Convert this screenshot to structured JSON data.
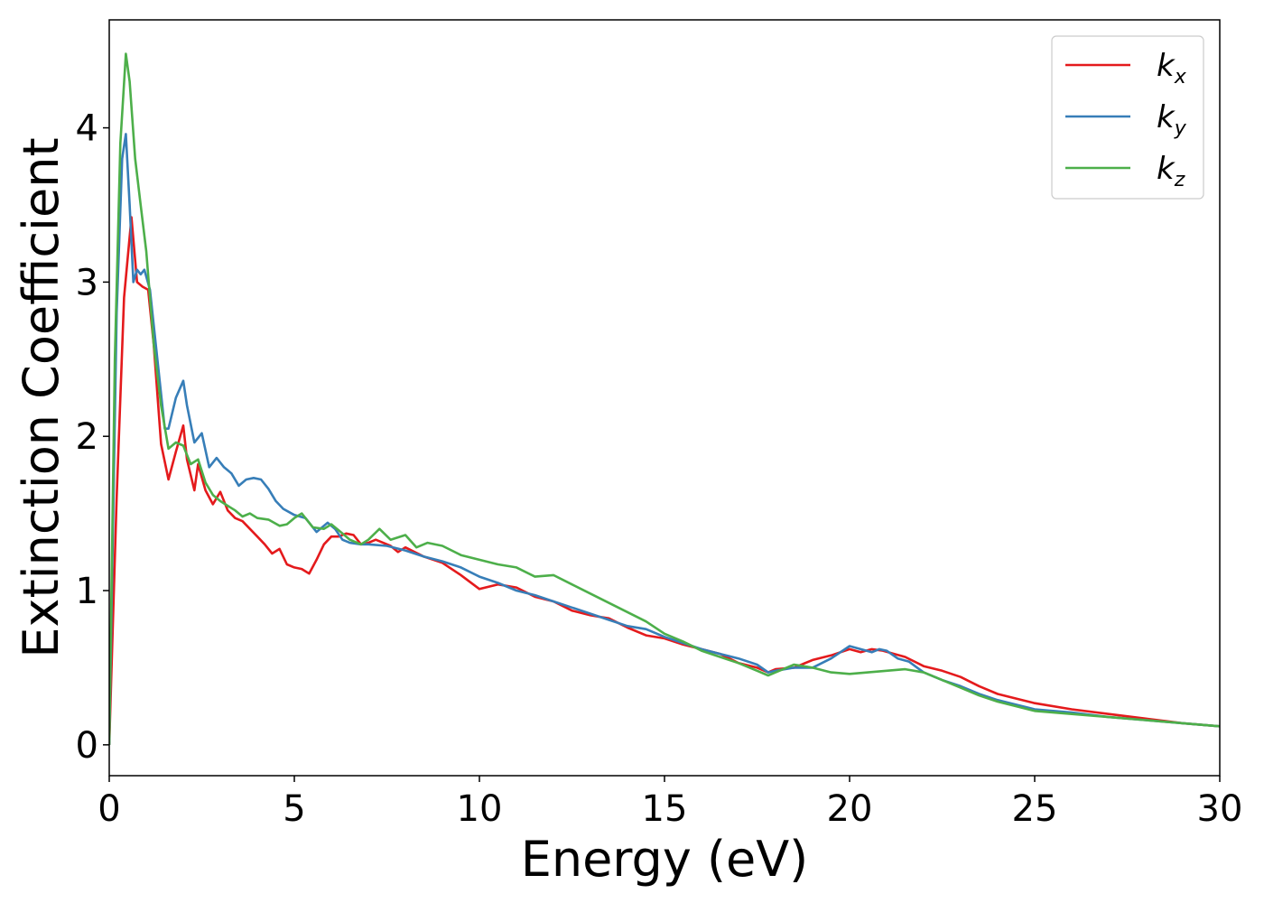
{
  "chart_data": {
    "type": "line",
    "title": "",
    "xlabel": "Energy (eV)",
    "ylabel": "Extinction Coefficient",
    "xlim": [
      0,
      30
    ],
    "ylim": [
      -0.2,
      4.7
    ],
    "xticks": [
      0,
      5,
      10,
      15,
      20,
      25,
      30
    ],
    "xtick_labels": [
      "0",
      "5",
      "10",
      "15",
      "20",
      "25",
      "30"
    ],
    "yticks": [
      0,
      1,
      2,
      3,
      4
    ],
    "ytick_labels": [
      "0",
      "1",
      "2",
      "3",
      "4"
    ],
    "grid": false,
    "legend_position": "top-right",
    "series": [
      {
        "name": "k_x",
        "legend_base": "k",
        "legend_sub": "x",
        "color": "#e41a1c",
        "x": [
          0,
          0.2,
          0.4,
          0.6,
          0.75,
          0.9,
          1.05,
          1.2,
          1.4,
          1.6,
          1.8,
          2.0,
          2.1,
          2.3,
          2.4,
          2.6,
          2.8,
          3.0,
          3.2,
          3.4,
          3.6,
          3.8,
          4.0,
          4.2,
          4.4,
          4.6,
          4.8,
          5.0,
          5.2,
          5.4,
          5.6,
          5.8,
          6.0,
          6.2,
          6.4,
          6.6,
          6.8,
          7.0,
          7.2,
          7.4,
          7.6,
          7.8,
          8.0,
          8.5,
          9.0,
          9.5,
          10.0,
          10.5,
          11.0,
          11.5,
          12.0,
          12.5,
          13.0,
          13.5,
          14.0,
          14.5,
          15.0,
          15.5,
          16.0,
          16.5,
          17.0,
          17.5,
          17.8,
          18.0,
          18.5,
          19.0,
          19.5,
          20.0,
          20.3,
          20.6,
          20.9,
          21.2,
          21.5,
          22.0,
          22.5,
          23.0,
          23.5,
          24.0,
          24.5,
          25.0,
          26.0,
          27.0,
          28.0,
          29.0,
          30.0
        ],
        "y": [
          0,
          1.6,
          2.9,
          3.42,
          3.0,
          2.97,
          2.95,
          2.6,
          1.95,
          1.72,
          1.9,
          2.07,
          1.85,
          1.65,
          1.82,
          1.65,
          1.56,
          1.64,
          1.52,
          1.47,
          1.45,
          1.4,
          1.35,
          1.3,
          1.24,
          1.27,
          1.17,
          1.15,
          1.14,
          1.11,
          1.2,
          1.3,
          1.35,
          1.35,
          1.37,
          1.36,
          1.3,
          1.31,
          1.33,
          1.31,
          1.29,
          1.25,
          1.28,
          1.22,
          1.18,
          1.1,
          1.01,
          1.04,
          1.02,
          0.96,
          0.93,
          0.87,
          0.84,
          0.82,
          0.76,
          0.71,
          0.69,
          0.65,
          0.62,
          0.59,
          0.53,
          0.5,
          0.47,
          0.49,
          0.5,
          0.55,
          0.58,
          0.62,
          0.6,
          0.62,
          0.61,
          0.59,
          0.57,
          0.51,
          0.48,
          0.44,
          0.38,
          0.33,
          0.3,
          0.27,
          0.23,
          0.2,
          0.17,
          0.14,
          0.12
        ]
      },
      {
        "name": "k_y",
        "legend_base": "k",
        "legend_sub": "y",
        "color": "#377eb8",
        "x": [
          0,
          0.2,
          0.35,
          0.45,
          0.55,
          0.65,
          0.75,
          0.85,
          0.95,
          1.1,
          1.3,
          1.5,
          1.6,
          1.8,
          2.0,
          2.1,
          2.3,
          2.5,
          2.7,
          2.9,
          3.1,
          3.3,
          3.5,
          3.7,
          3.9,
          4.1,
          4.3,
          4.5,
          4.7,
          5.0,
          5.3,
          5.6,
          5.9,
          6.1,
          6.3,
          6.5,
          6.8,
          7.0,
          7.5,
          8.0,
          8.5,
          9.0,
          9.5,
          10.0,
          10.5,
          11.0,
          11.5,
          12.0,
          12.5,
          13.0,
          13.5,
          14.0,
          14.5,
          15.0,
          15.5,
          16.0,
          16.5,
          17.0,
          17.5,
          17.8,
          18.0,
          18.5,
          19.0,
          19.5,
          20.0,
          20.3,
          20.6,
          20.8,
          21.0,
          21.3,
          21.6,
          22.0,
          22.5,
          23.0,
          23.5,
          24.0,
          24.5,
          25.0,
          26.0,
          27.0,
          28.0,
          29.0,
          30.0
        ],
        "y": [
          0,
          2.8,
          3.8,
          3.96,
          3.5,
          3.0,
          3.08,
          3.05,
          3.08,
          2.95,
          2.5,
          2.05,
          2.05,
          2.25,
          2.36,
          2.2,
          1.96,
          2.02,
          1.8,
          1.86,
          1.8,
          1.76,
          1.68,
          1.72,
          1.73,
          1.72,
          1.66,
          1.58,
          1.53,
          1.49,
          1.47,
          1.38,
          1.44,
          1.4,
          1.33,
          1.31,
          1.3,
          1.3,
          1.29,
          1.26,
          1.22,
          1.19,
          1.15,
          1.09,
          1.05,
          1.0,
          0.97,
          0.93,
          0.89,
          0.85,
          0.81,
          0.77,
          0.75,
          0.7,
          0.66,
          0.62,
          0.59,
          0.56,
          0.52,
          0.47,
          0.48,
          0.5,
          0.5,
          0.56,
          0.64,
          0.62,
          0.6,
          0.62,
          0.61,
          0.56,
          0.54,
          0.47,
          0.42,
          0.38,
          0.33,
          0.29,
          0.26,
          0.23,
          0.21,
          0.18,
          0.16,
          0.14,
          0.12
        ]
      },
      {
        "name": "k_z",
        "legend_base": "k",
        "legend_sub": "z",
        "color": "#4daf4a",
        "x": [
          0,
          0.15,
          0.3,
          0.45,
          0.55,
          0.7,
          0.85,
          1.0,
          1.2,
          1.4,
          1.6,
          1.8,
          2.0,
          2.2,
          2.4,
          2.6,
          2.8,
          3.0,
          3.2,
          3.4,
          3.6,
          3.8,
          4.0,
          4.3,
          4.6,
          4.8,
          5.0,
          5.2,
          5.5,
          5.8,
          6.0,
          6.3,
          6.5,
          6.8,
          7.0,
          7.3,
          7.6,
          8.0,
          8.3,
          8.6,
          9.0,
          9.5,
          10.0,
          10.5,
          11.0,
          11.5,
          12.0,
          12.5,
          13.0,
          13.5,
          14.0,
          14.5,
          15.0,
          15.5,
          16.0,
          16.5,
          17.0,
          17.5,
          17.8,
          18.0,
          18.5,
          19.0,
          19.5,
          20.0,
          20.5,
          21.0,
          21.5,
          22.0,
          22.5,
          23.0,
          23.5,
          24.0,
          24.5,
          25.0,
          26.0,
          27.0,
          28.0,
          29.0,
          30.0
        ],
        "y": [
          0,
          2.5,
          3.9,
          4.48,
          4.3,
          3.8,
          3.5,
          3.2,
          2.6,
          2.2,
          1.92,
          1.96,
          1.94,
          1.82,
          1.85,
          1.7,
          1.62,
          1.58,
          1.55,
          1.52,
          1.48,
          1.5,
          1.47,
          1.46,
          1.42,
          1.43,
          1.47,
          1.5,
          1.41,
          1.4,
          1.43,
          1.37,
          1.33,
          1.3,
          1.33,
          1.4,
          1.33,
          1.36,
          1.28,
          1.31,
          1.29,
          1.23,
          1.2,
          1.17,
          1.15,
          1.09,
          1.1,
          1.04,
          0.98,
          0.92,
          0.86,
          0.8,
          0.72,
          0.67,
          0.61,
          0.57,
          0.53,
          0.48,
          0.45,
          0.47,
          0.52,
          0.5,
          0.47,
          0.46,
          0.47,
          0.48,
          0.49,
          0.47,
          0.42,
          0.37,
          0.32,
          0.28,
          0.25,
          0.22,
          0.2,
          0.18,
          0.16,
          0.14,
          0.12
        ]
      }
    ]
  }
}
